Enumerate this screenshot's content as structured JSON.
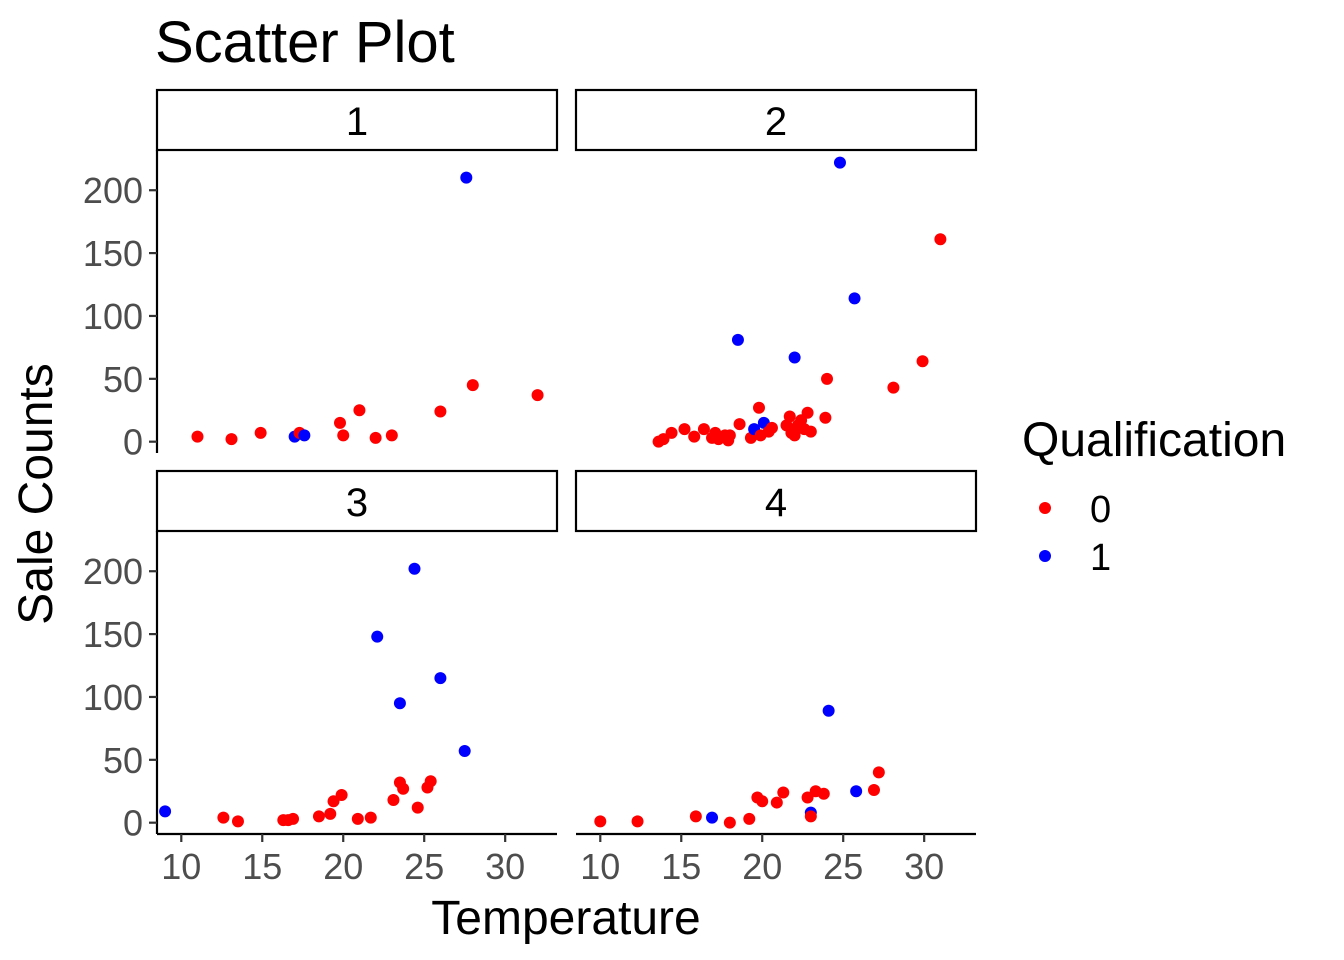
{
  "chart_data": {
    "type": "scatter",
    "title": "Scatter Plot",
    "xlabel": "Temperature",
    "ylabel": "Sale Counts",
    "xlim": [
      8.5,
      33.2
    ],
    "ylim": [
      -9,
      232
    ],
    "x_ticks": [
      10,
      15,
      20,
      25,
      30
    ],
    "y_ticks": [
      0,
      50,
      100,
      150,
      200
    ],
    "grid": false,
    "legend": {
      "title": "Qualification",
      "position": "right",
      "entries": [
        {
          "label": "0",
          "color": "#ff0000"
        },
        {
          "label": "1",
          "color": "#0000ff"
        }
      ]
    },
    "facets": [
      {
        "label": "1",
        "points": [
          {
            "x": 11.0,
            "y": 4,
            "q": "0"
          },
          {
            "x": 13.1,
            "y": 2,
            "q": "0"
          },
          {
            "x": 14.9,
            "y": 7,
            "q": "0"
          },
          {
            "x": 17.0,
            "y": 4,
            "q": "1"
          },
          {
            "x": 17.3,
            "y": 7,
            "q": "0"
          },
          {
            "x": 17.6,
            "y": 5,
            "q": "1"
          },
          {
            "x": 19.8,
            "y": 15,
            "q": "0"
          },
          {
            "x": 20.0,
            "y": 5,
            "q": "0"
          },
          {
            "x": 21.0,
            "y": 25,
            "q": "0"
          },
          {
            "x": 22.0,
            "y": 3,
            "q": "0"
          },
          {
            "x": 23.0,
            "y": 5,
            "q": "0"
          },
          {
            "x": 26.0,
            "y": 24,
            "q": "0"
          },
          {
            "x": 27.6,
            "y": 210,
            "q": "1"
          },
          {
            "x": 28.0,
            "y": 45,
            "q": "0"
          },
          {
            "x": 32.0,
            "y": 37,
            "q": "0"
          }
        ]
      },
      {
        "label": "2",
        "points": [
          {
            "x": 13.6,
            "y": 0,
            "q": "0"
          },
          {
            "x": 13.9,
            "y": 2,
            "q": "0"
          },
          {
            "x": 14.4,
            "y": 7,
            "q": "0"
          },
          {
            "x": 15.2,
            "y": 10,
            "q": "0"
          },
          {
            "x": 15.8,
            "y": 4,
            "q": "0"
          },
          {
            "x": 16.4,
            "y": 10,
            "q": "0"
          },
          {
            "x": 16.9,
            "y": 3,
            "q": "0"
          },
          {
            "x": 17.1,
            "y": 7,
            "q": "0"
          },
          {
            "x": 17.3,
            "y": 2,
            "q": "0"
          },
          {
            "x": 17.7,
            "y": 5,
            "q": "0"
          },
          {
            "x": 17.9,
            "y": 1,
            "q": "0"
          },
          {
            "x": 18.0,
            "y": 5,
            "q": "0"
          },
          {
            "x": 18.5,
            "y": 81,
            "q": "1"
          },
          {
            "x": 18.6,
            "y": 14,
            "q": "0"
          },
          {
            "x": 19.3,
            "y": 3,
            "q": "0"
          },
          {
            "x": 19.5,
            "y": 10,
            "q": "1"
          },
          {
            "x": 19.8,
            "y": 27,
            "q": "0"
          },
          {
            "x": 19.9,
            "y": 5,
            "q": "0"
          },
          {
            "x": 20.1,
            "y": 15,
            "q": "1"
          },
          {
            "x": 20.4,
            "y": 8,
            "q": "0"
          },
          {
            "x": 20.6,
            "y": 11,
            "q": "0"
          },
          {
            "x": 21.5,
            "y": 13,
            "q": "0"
          },
          {
            "x": 21.7,
            "y": 20,
            "q": "0"
          },
          {
            "x": 21.8,
            "y": 7,
            "q": "0"
          },
          {
            "x": 22.0,
            "y": 5,
            "q": "0"
          },
          {
            "x": 22.0,
            "y": 67,
            "q": "1"
          },
          {
            "x": 22.2,
            "y": 13,
            "q": "0"
          },
          {
            "x": 22.4,
            "y": 17,
            "q": "0"
          },
          {
            "x": 22.6,
            "y": 10,
            "q": "0"
          },
          {
            "x": 22.8,
            "y": 23,
            "q": "0"
          },
          {
            "x": 23.0,
            "y": 8,
            "q": "0"
          },
          {
            "x": 23.9,
            "y": 19,
            "q": "0"
          },
          {
            "x": 24.0,
            "y": 50,
            "q": "0"
          },
          {
            "x": 24.8,
            "y": 222,
            "q": "1"
          },
          {
            "x": 25.7,
            "y": 114,
            "q": "1"
          },
          {
            "x": 28.1,
            "y": 43,
            "q": "0"
          },
          {
            "x": 29.9,
            "y": 64,
            "q": "0"
          },
          {
            "x": 31.0,
            "y": 161,
            "q": "0"
          }
        ]
      },
      {
        "label": "3",
        "points": [
          {
            "x": 9.0,
            "y": 9,
            "q": "1"
          },
          {
            "x": 12.6,
            "y": 4,
            "q": "0"
          },
          {
            "x": 13.5,
            "y": 1,
            "q": "0"
          },
          {
            "x": 16.3,
            "y": 2,
            "q": "0"
          },
          {
            "x": 16.6,
            "y": 2,
            "q": "0"
          },
          {
            "x": 16.9,
            "y": 3,
            "q": "0"
          },
          {
            "x": 18.5,
            "y": 5,
            "q": "0"
          },
          {
            "x": 19.2,
            "y": 7,
            "q": "0"
          },
          {
            "x": 19.4,
            "y": 17,
            "q": "0"
          },
          {
            "x": 19.9,
            "y": 22,
            "q": "0"
          },
          {
            "x": 20.9,
            "y": 3,
            "q": "0"
          },
          {
            "x": 21.7,
            "y": 4,
            "q": "0"
          },
          {
            "x": 22.1,
            "y": 148,
            "q": "1"
          },
          {
            "x": 23.1,
            "y": 18,
            "q": "0"
          },
          {
            "x": 23.5,
            "y": 95,
            "q": "1"
          },
          {
            "x": 23.5,
            "y": 32,
            "q": "0"
          },
          {
            "x": 23.7,
            "y": 27,
            "q": "0"
          },
          {
            "x": 24.4,
            "y": 202,
            "q": "1"
          },
          {
            "x": 24.6,
            "y": 12,
            "q": "0"
          },
          {
            "x": 25.2,
            "y": 28,
            "q": "0"
          },
          {
            "x": 25.4,
            "y": 33,
            "q": "0"
          },
          {
            "x": 26.0,
            "y": 115,
            "q": "1"
          },
          {
            "x": 27.5,
            "y": 57,
            "q": "1"
          }
        ]
      },
      {
        "label": "4",
        "points": [
          {
            "x": 10.0,
            "y": 1,
            "q": "0"
          },
          {
            "x": 12.3,
            "y": 1,
            "q": "0"
          },
          {
            "x": 15.9,
            "y": 5,
            "q": "0"
          },
          {
            "x": 16.9,
            "y": 4,
            "q": "1"
          },
          {
            "x": 18.0,
            "y": 0,
            "q": "0"
          },
          {
            "x": 19.2,
            "y": 3,
            "q": "0"
          },
          {
            "x": 19.7,
            "y": 20,
            "q": "0"
          },
          {
            "x": 20.0,
            "y": 17,
            "q": "0"
          },
          {
            "x": 20.9,
            "y": 16,
            "q": "0"
          },
          {
            "x": 21.3,
            "y": 24,
            "q": "0"
          },
          {
            "x": 22.8,
            "y": 20,
            "q": "0"
          },
          {
            "x": 23.0,
            "y": 8,
            "q": "1"
          },
          {
            "x": 23.0,
            "y": 5,
            "q": "0"
          },
          {
            "x": 23.3,
            "y": 25,
            "q": "0"
          },
          {
            "x": 23.8,
            "y": 23,
            "q": "0"
          },
          {
            "x": 24.1,
            "y": 89,
            "q": "1"
          },
          {
            "x": 25.8,
            "y": 25,
            "q": "1"
          },
          {
            "x": 26.9,
            "y": 26,
            "q": "0"
          },
          {
            "x": 27.2,
            "y": 40,
            "q": "0"
          }
        ]
      }
    ]
  }
}
